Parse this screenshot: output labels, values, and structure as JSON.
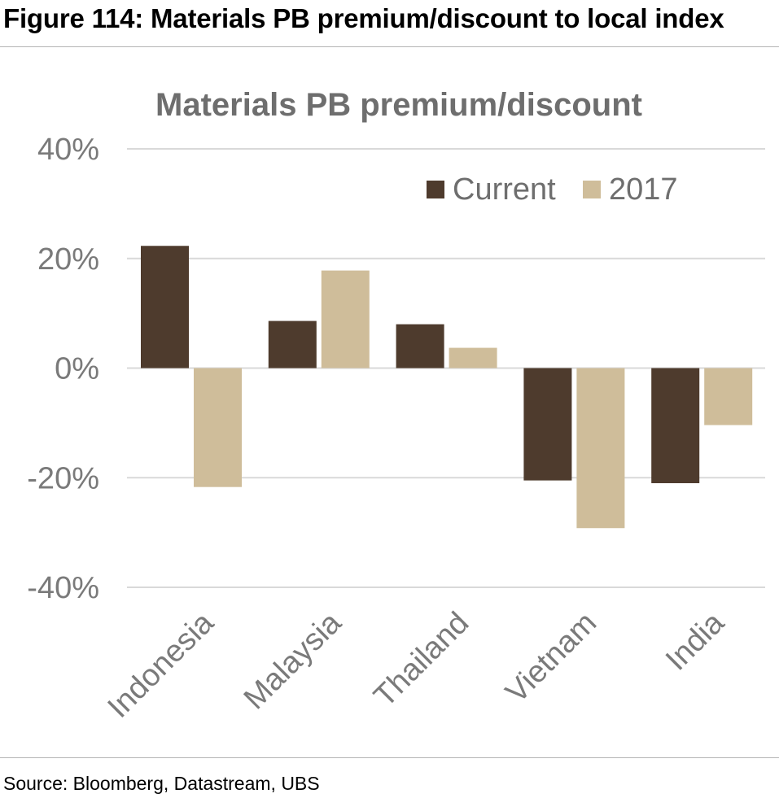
{
  "figure": {
    "title": "Figure 114: Materials PB premium/discount to local index",
    "source": "Source: Bloomberg, Datastream, UBS"
  },
  "chart_data": {
    "type": "bar",
    "title": "Materials PB premium/discount",
    "categories": [
      "Indonesia",
      "Malaysia",
      "Thailand",
      "Vietnam",
      "India"
    ],
    "series": [
      {
        "name": "Current",
        "values": [
          22.3,
          8.6,
          8.0,
          -20.5,
          -21.0
        ],
        "color": "#4e3b2d"
      },
      {
        "name": "2017",
        "values": [
          -21.7,
          17.8,
          3.7,
          -29.2,
          -10.4
        ],
        "color": "#cfbd9a"
      }
    ],
    "ylim": [
      -40,
      40
    ],
    "yticks": [
      40,
      20,
      0,
      -20,
      -40
    ],
    "ytick_labels": [
      "40%",
      "20%",
      "0%",
      "-20%",
      "-40%"
    ],
    "grid": true,
    "legend_position": "top-right"
  }
}
